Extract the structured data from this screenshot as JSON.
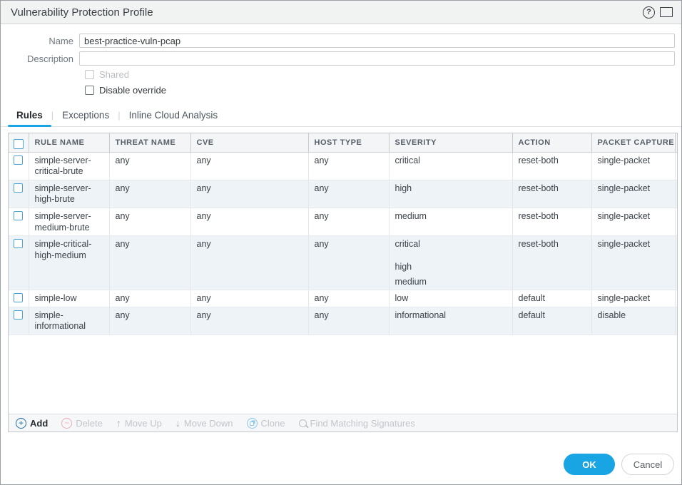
{
  "dialog": {
    "title": "Vulnerability Protection Profile",
    "help_glyph": "?"
  },
  "form": {
    "name_label": "Name",
    "name_value": "best-practice-vuln-pcap",
    "description_label": "Description",
    "description_value": "",
    "shared_label": "Shared",
    "shared_checked": false,
    "disable_override_label": "Disable override",
    "disable_override_checked": false
  },
  "tabs": [
    {
      "label": "Rules",
      "active": true
    },
    {
      "label": "Exceptions",
      "active": false
    },
    {
      "label": "Inline Cloud Analysis",
      "active": false
    }
  ],
  "table": {
    "columns": [
      "RULE NAME",
      "THREAT NAME",
      "CVE",
      "HOST TYPE",
      "SEVERITY",
      "ACTION",
      "PACKET CAPTURE"
    ],
    "rows": [
      {
        "rule_name": "simple-server-critical-brute",
        "threat_name": "any",
        "cve": "any",
        "host_type": "any",
        "severity": [
          "critical"
        ],
        "action": "reset-both",
        "packet_capture": "single-packet",
        "checked": false
      },
      {
        "rule_name": "simple-server-high-brute",
        "threat_name": "any",
        "cve": "any",
        "host_type": "any",
        "severity": [
          "high"
        ],
        "action": "reset-both",
        "packet_capture": "single-packet",
        "checked": false
      },
      {
        "rule_name": "simple-server-medium-brute",
        "threat_name": "any",
        "cve": "any",
        "host_type": "any",
        "severity": [
          "medium"
        ],
        "action": "reset-both",
        "packet_capture": "single-packet",
        "checked": false
      },
      {
        "rule_name": "simple-critical-high-medium",
        "threat_name": "any",
        "cve": "any",
        "host_type": "any",
        "severity": [
          "critical",
          "high",
          "medium"
        ],
        "action": "reset-both",
        "packet_capture": "single-packet",
        "checked": false
      },
      {
        "rule_name": "simple-low",
        "threat_name": "any",
        "cve": "any",
        "host_type": "any",
        "severity": [
          "low"
        ],
        "action": "default",
        "packet_capture": "single-packet",
        "checked": false
      },
      {
        "rule_name": "simple-informational",
        "threat_name": "any",
        "cve": "any",
        "host_type": "any",
        "severity": [
          "informational"
        ],
        "action": "default",
        "packet_capture": "disable",
        "checked": false
      }
    ]
  },
  "toolbar": {
    "add": "Add",
    "delete": "Delete",
    "move_up": "Move Up",
    "move_down": "Move Down",
    "clone": "Clone",
    "find": "Find Matching Signatures"
  },
  "footer": {
    "ok": "OK",
    "cancel": "Cancel"
  },
  "colors": {
    "accent": "#19a5e4",
    "checkbox_blue": "#4aa3cf"
  }
}
